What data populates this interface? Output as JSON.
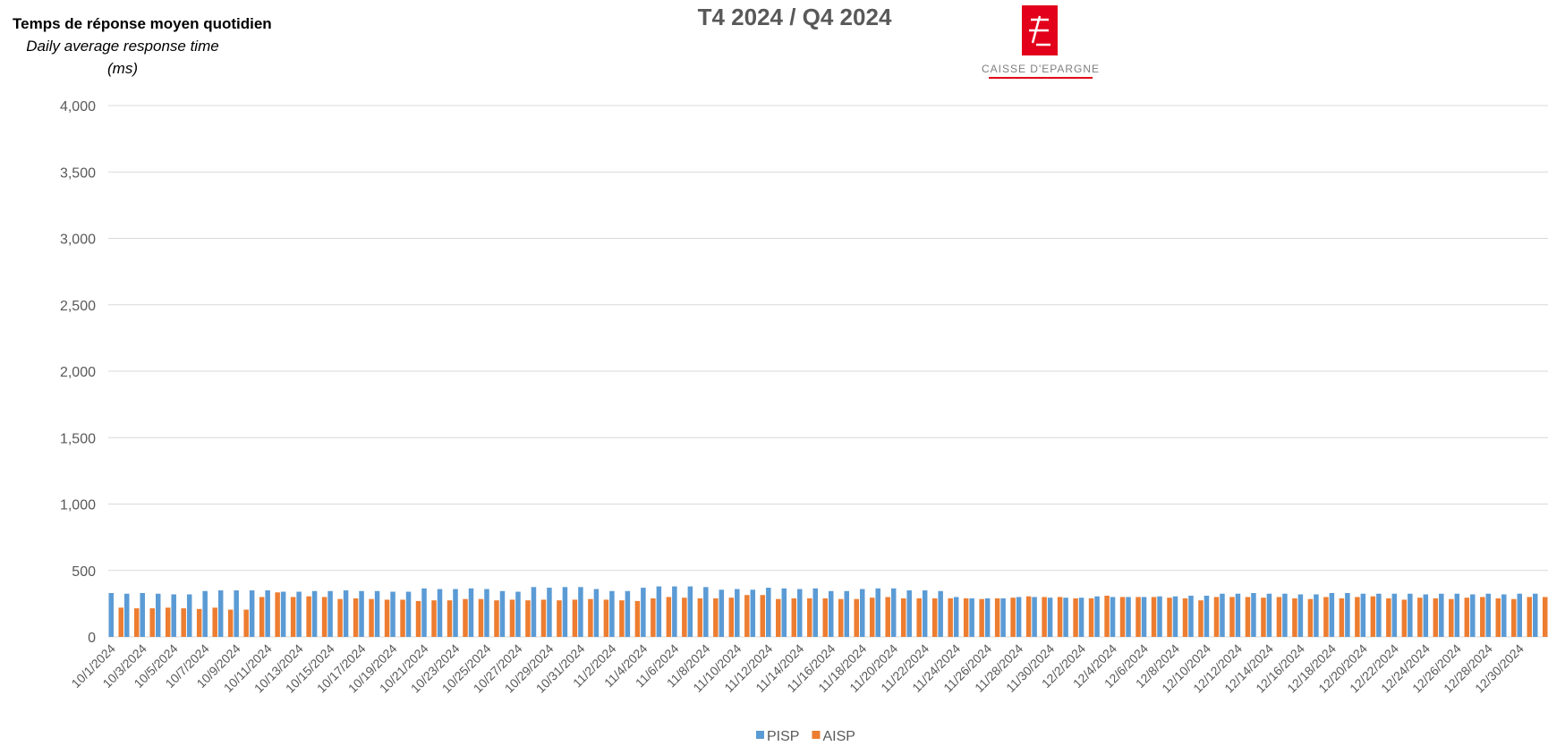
{
  "chart_data": {
    "type": "bar",
    "title": "T4 2024 / Q4 2024",
    "y_title": [
      "Temps de réponse moyen quotidien",
      "Daily average response time",
      "(ms)"
    ],
    "logo_text": "CAISSE D'EPARGNE",
    "categories": [
      "10/1/2024",
      null,
      "10/3/2024",
      null,
      "10/5/2024",
      null,
      "10/7/2024",
      null,
      "10/9/2024",
      null,
      "10/11/2024",
      null,
      "10/13/2024",
      null,
      "10/15/2024",
      null,
      "10/17/2024",
      null,
      "10/19/2024",
      null,
      "10/21/2024",
      null,
      "10/23/2024",
      null,
      "10/25/2024",
      null,
      "10/27/2024",
      null,
      "10/29/2024",
      null,
      "10/31/2024",
      null,
      "11/2/2024",
      null,
      "11/4/2024",
      null,
      "11/6/2024",
      null,
      "11/8/2024",
      null,
      "11/10/2024",
      null,
      "11/12/2024",
      null,
      "11/14/2024",
      null,
      "11/16/2024",
      null,
      "11/18/2024",
      null,
      "11/20/2024",
      null,
      "11/22/2024",
      null,
      "11/24/2024",
      null,
      "11/26/2024",
      null,
      "11/28/2024",
      null,
      "11/30/2024",
      null,
      "12/2/2024",
      null,
      "12/4/2024",
      null,
      "12/6/2024",
      null,
      "12/8/2024",
      null,
      "12/10/2024",
      null,
      "12/12/2024",
      null,
      "12/14/2024",
      null,
      "12/16/2024",
      null,
      "12/18/2024",
      null,
      "12/20/2024",
      null,
      "12/22/2024",
      null,
      "12/24/2024",
      null,
      "12/26/2024",
      null,
      "12/28/2024",
      null,
      "12/30/2024",
      null
    ],
    "series": [
      {
        "name": "PISP",
        "color": "#5b9bd5",
        "values": [
          330,
          325,
          330,
          325,
          320,
          320,
          345,
          350,
          350,
          350,
          350,
          340,
          340,
          345,
          345,
          350,
          345,
          345,
          340,
          340,
          365,
          360,
          360,
          365,
          360,
          345,
          340,
          375,
          370,
          375,
          375,
          360,
          345,
          345,
          370,
          380,
          380,
          380,
          375,
          355,
          360,
          355,
          370,
          365,
          360,
          365,
          345,
          345,
          360,
          365,
          365,
          350,
          350,
          345,
          300,
          290,
          290,
          290,
          300,
          300,
          295,
          295,
          295,
          305,
          300,
          300,
          300,
          305,
          305,
          310,
          310,
          325,
          325,
          330,
          325,
          325,
          320,
          320,
          330,
          330,
          325,
          325,
          325,
          325,
          320,
          325,
          325,
          320,
          325,
          320,
          325,
          325
        ]
      },
      {
        "name": "AISP",
        "color": "#ed7d31",
        "values": [
          220,
          215,
          215,
          220,
          215,
          210,
          220,
          205,
          205,
          300,
          335,
          300,
          305,
          300,
          285,
          290,
          285,
          280,
          280,
          270,
          275,
          275,
          285,
          285,
          275,
          280,
          275,
          280,
          275,
          280,
          285,
          280,
          275,
          270,
          290,
          300,
          295,
          290,
          290,
          295,
          315,
          315,
          285,
          290,
          290,
          290,
          285,
          285,
          295,
          300,
          290,
          290,
          290,
          290,
          290,
          285,
          290,
          295,
          305,
          300,
          300,
          290,
          290,
          310,
          300,
          300,
          300,
          295,
          290,
          275,
          300,
          300,
          300,
          295,
          300,
          290,
          285,
          300,
          290,
          300,
          305,
          290,
          280,
          295,
          290,
          285,
          295,
          300,
          290,
          285,
          300,
          300
        ]
      }
    ],
    "ylim": [
      0,
      4000
    ],
    "yticks": [
      0,
      500,
      {
        "value": 1000,
        "label": "1,000"
      },
      {
        "value": 1500,
        "label": "1,500"
      },
      {
        "value": 2000,
        "label": "2,000"
      },
      {
        "value": 2500,
        "label": "2,500"
      },
      {
        "value": 3000,
        "label": "3,000"
      },
      {
        "value": 3500,
        "label": "3,500"
      },
      {
        "value": 4000,
        "label": "4,000"
      }
    ],
    "grid": true,
    "legend": "bottom"
  }
}
